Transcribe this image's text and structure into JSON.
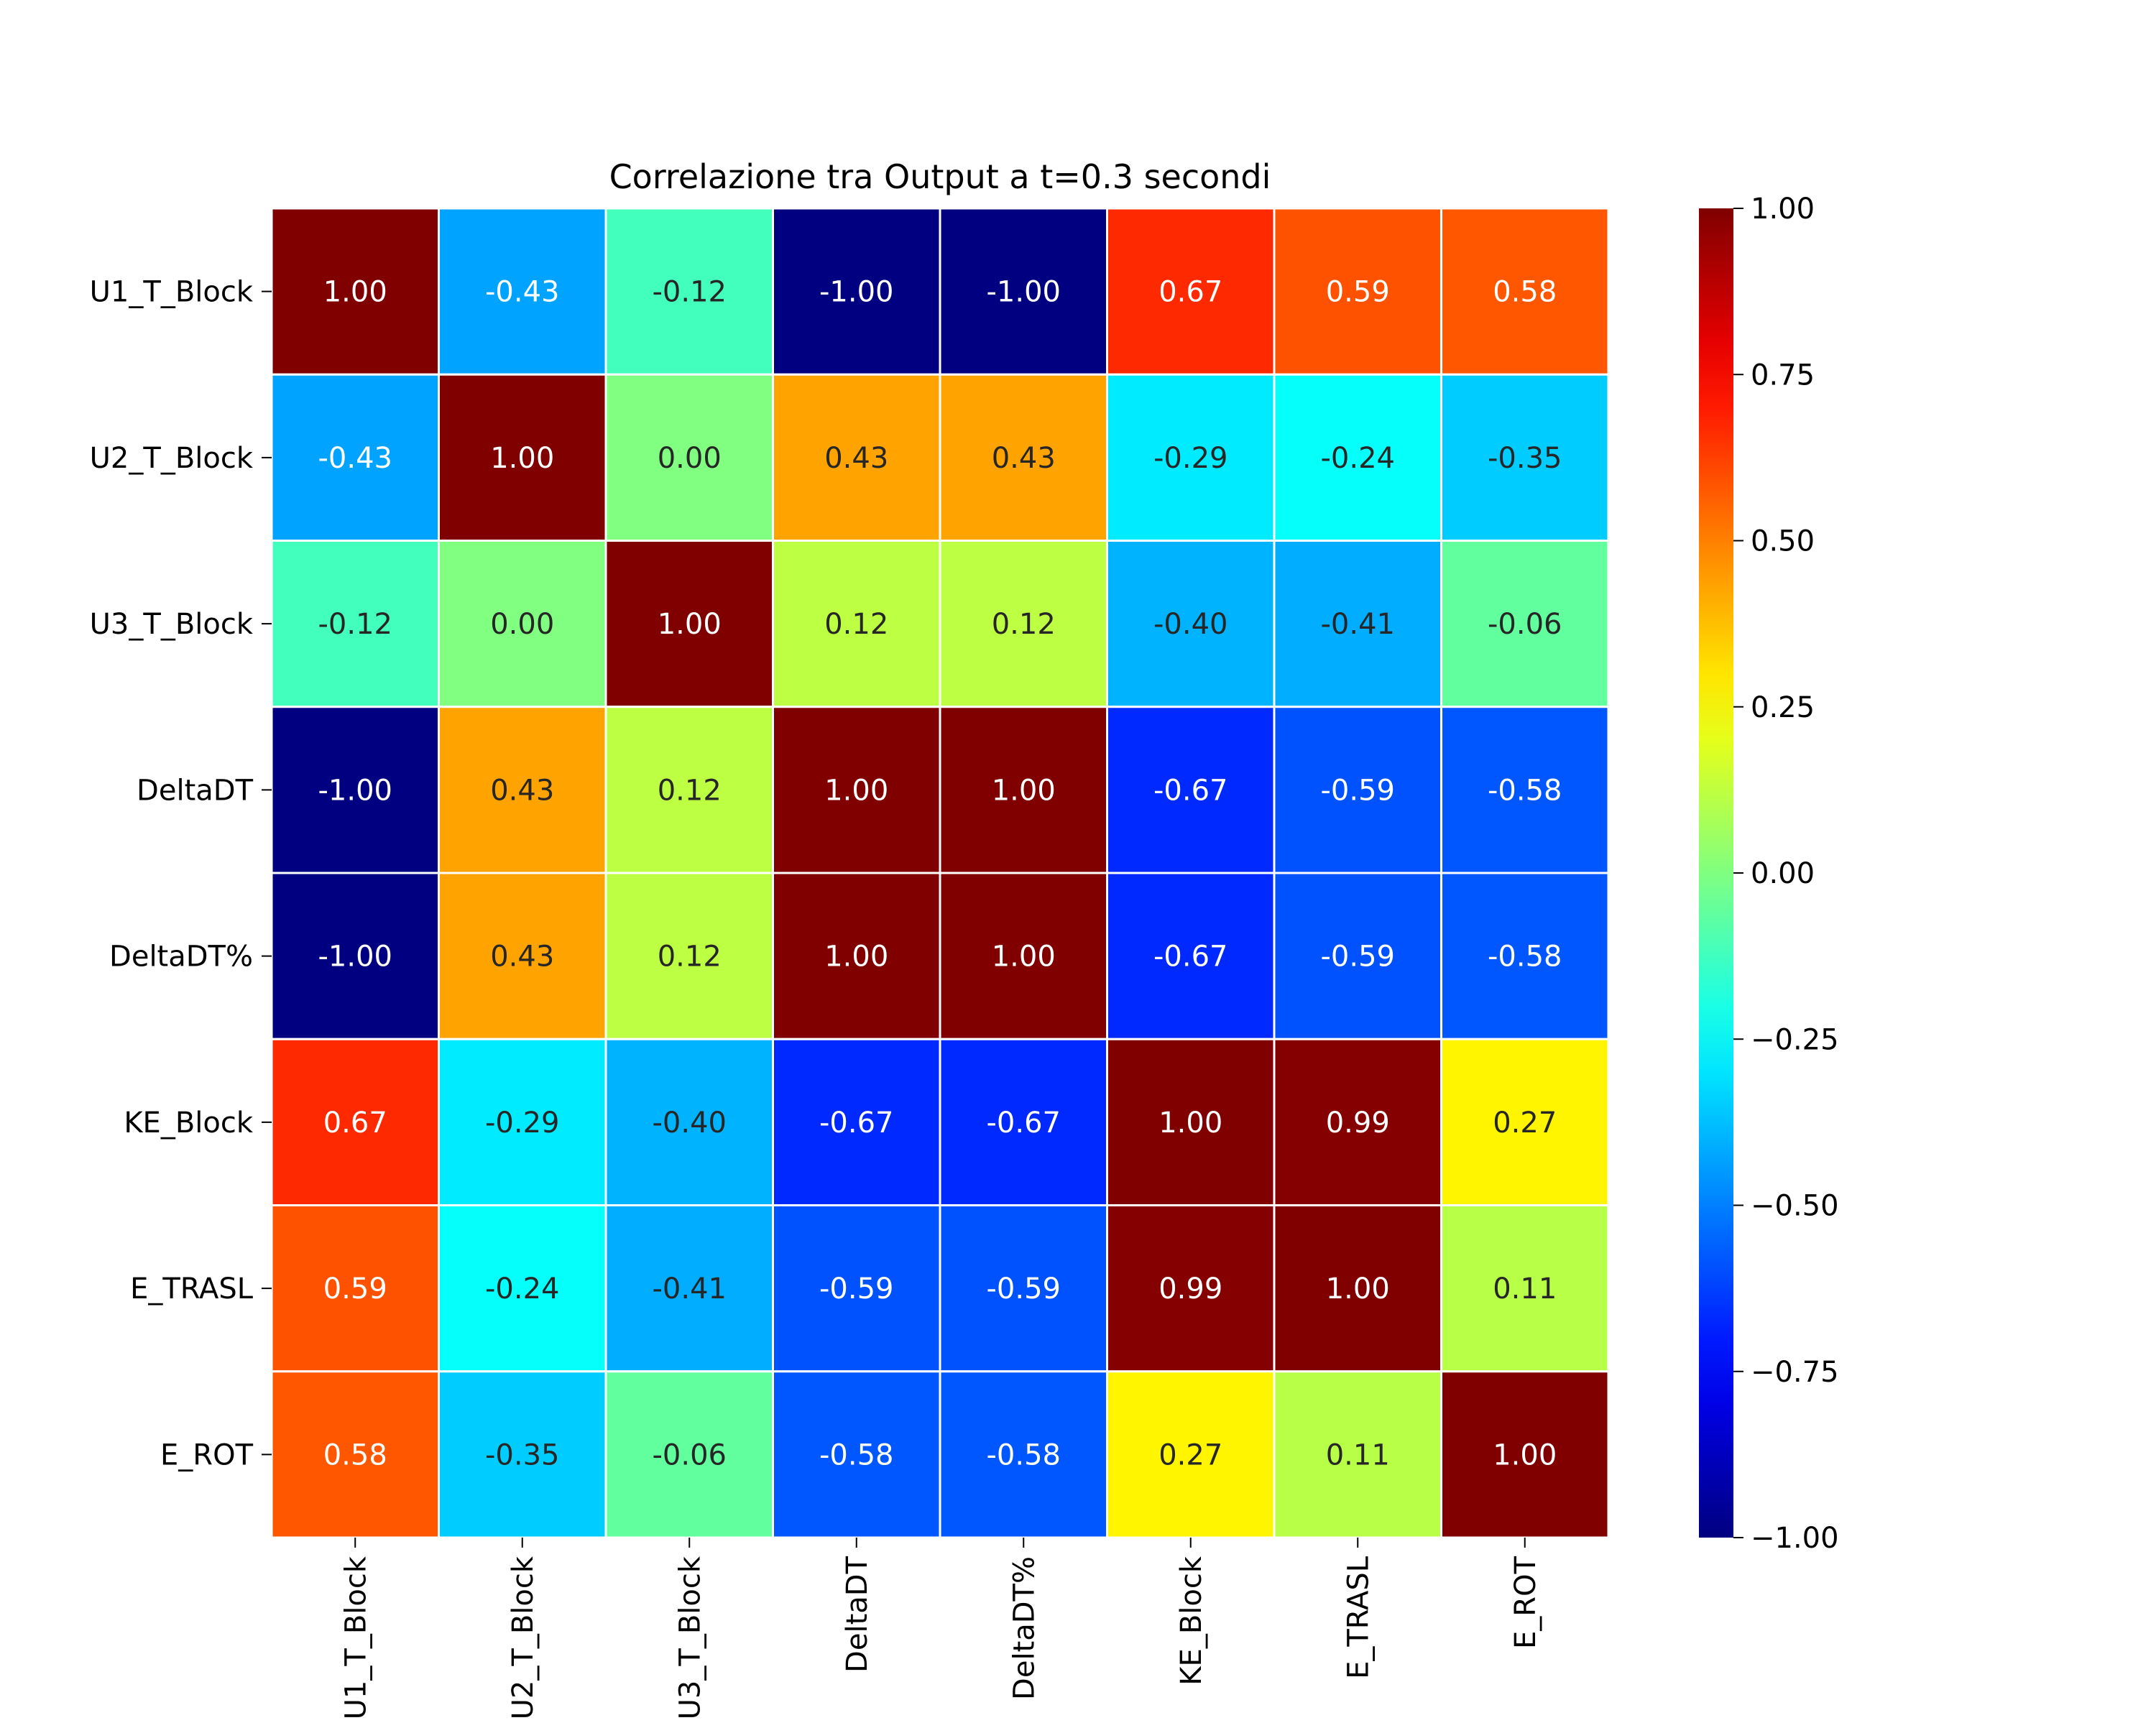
{
  "chart_data": {
    "type": "heatmap",
    "title": "Correlazione tra Output a t=0.3 secondi",
    "xlabel": "",
    "ylabel": "",
    "row_labels": [
      "U1_T_Block",
      "U2_T_Block",
      "U3_T_Block",
      "DeltaDT",
      "DeltaDT%",
      "KE_Block",
      "E_TRASL",
      "E_ROT"
    ],
    "col_labels": [
      "U1_T_Block",
      "U2_T_Block",
      "U3_T_Block",
      "DeltaDT",
      "DeltaDT%",
      "KE_Block",
      "E_TRASL",
      "E_ROT"
    ],
    "values": [
      [
        1.0,
        -0.43,
        -0.12,
        -1.0,
        -1.0,
        0.67,
        0.59,
        0.58
      ],
      [
        -0.43,
        1.0,
        0.0,
        0.43,
        0.43,
        -0.29,
        -0.24,
        -0.35
      ],
      [
        -0.12,
        0.0,
        1.0,
        0.12,
        0.12,
        -0.4,
        -0.41,
        -0.06
      ],
      [
        -1.0,
        0.43,
        0.12,
        1.0,
        1.0,
        -0.67,
        -0.59,
        -0.58
      ],
      [
        -1.0,
        0.43,
        0.12,
        1.0,
        1.0,
        -0.67,
        -0.59,
        -0.58
      ],
      [
        0.67,
        -0.29,
        -0.4,
        -0.67,
        -0.67,
        1.0,
        0.99,
        0.27
      ],
      [
        0.59,
        -0.24,
        -0.41,
        -0.59,
        -0.59,
        0.99,
        1.0,
        0.11
      ],
      [
        0.58,
        -0.35,
        -0.06,
        -0.58,
        -0.58,
        0.27,
        0.11,
        1.0
      ]
    ],
    "cell_labels": [
      [
        "1.00",
        "-0.43",
        "-0.12",
        "-1.00",
        "-1.00",
        "0.67",
        "0.59",
        "0.58"
      ],
      [
        "-0.43",
        "1.00",
        "0.00",
        "0.43",
        "0.43",
        "-0.29",
        "-0.24",
        "-0.35"
      ],
      [
        "-0.12",
        "0.00",
        "1.00",
        "0.12",
        "0.12",
        "-0.40",
        "-0.41",
        "-0.06"
      ],
      [
        "-1.00",
        "0.43",
        "0.12",
        "1.00",
        "1.00",
        "-0.67",
        "-0.59",
        "-0.58"
      ],
      [
        "-1.00",
        "0.43",
        "0.12",
        "1.00",
        "1.00",
        "-0.67",
        "-0.59",
        "-0.58"
      ],
      [
        "0.67",
        "-0.29",
        "-0.40",
        "-0.67",
        "-0.67",
        "1.00",
        "0.99",
        "0.27"
      ],
      [
        "0.59",
        "-0.24",
        "-0.41",
        "-0.59",
        "-0.59",
        "0.99",
        "1.00",
        "0.11"
      ],
      [
        "0.58",
        "-0.35",
        "-0.06",
        "-0.58",
        "-0.58",
        "0.27",
        "0.11",
        "1.00"
      ]
    ],
    "colormap": "jet",
    "vmin": -1.0,
    "vmax": 1.0,
    "colorbar_ticks": [
      1.0,
      0.75,
      0.5,
      0.25,
      0.0,
      -0.25,
      -0.5,
      -0.75,
      -1.0
    ],
    "colorbar_tick_labels": [
      "1.00",
      "0.75",
      "0.50",
      "0.25",
      "0.00",
      "−0.25",
      "−0.50",
      "−0.75",
      "−1.00"
    ],
    "colorbar_position": "right",
    "grid_line_color": "#ffffff",
    "text_color_dark_cells": "#ffffff",
    "text_color_light_cells": "#262626"
  }
}
